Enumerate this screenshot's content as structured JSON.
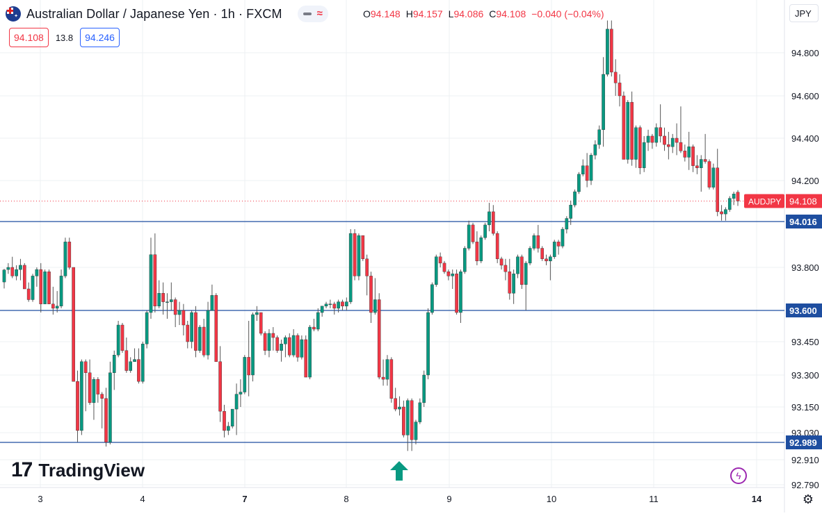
{
  "header": {
    "title": "Australian Dollar / Japanese Yen · 1h · FXCM",
    "flag_icon": "australia-flag-icon"
  },
  "ohlc": {
    "o_label": "O",
    "o": "94.148",
    "h_label": "H",
    "h": "94.157",
    "l_label": "L",
    "l": "94.086",
    "c_label": "C",
    "c": "94.108",
    "change": "−0.040 (−0.04%)"
  },
  "trade": {
    "sell": "94.108",
    "spread": "13.8",
    "buy": "94.246"
  },
  "currency_button": "JPY",
  "logo_text": "TradingView",
  "colors": {
    "up": "#089981",
    "down": "#f23645",
    "level_line": "#1e4ea0",
    "price_label": "#f23645",
    "arrow": "#089981",
    "grid": "#eef0f3"
  },
  "icons": {
    "bolt": "lightning-icon",
    "settings": "gear-icon",
    "signal_arrow": "up-arrow-icon"
  },
  "chart_data": {
    "type": "candlestick",
    "symbol_label": "AUDJPY",
    "current_price": 94.108,
    "y_ticks": [
      94.8,
      94.6,
      94.4,
      94.2,
      93.8,
      93.45,
      93.3,
      93.15,
      93.03,
      92.91,
      92.79
    ],
    "y_tick_labels": [
      "94.800",
      "94.600",
      "94.400",
      "94.200",
      "93.800",
      "93.450",
      "93.300",
      "93.150",
      "93.030",
      "92.910",
      "92.790"
    ],
    "x_labels": [
      "3",
      "4",
      "7",
      "8",
      "9",
      "10",
      "11",
      "14"
    ],
    "x_bold": [
      "7",
      "14"
    ],
    "levels": [
      94.016,
      93.6,
      92.989
    ],
    "level_labels": [
      "94.016",
      "93.600",
      "92.989"
    ],
    "arrow_at_date": "8",
    "candles": [
      [
        93.732,
        93.793,
        93.702,
        93.788
      ],
      [
        93.79,
        93.82,
        93.77,
        93.8
      ],
      [
        93.8,
        93.85,
        93.75,
        93.76
      ],
      [
        93.76,
        93.81,
        93.74,
        93.79
      ],
      [
        93.79,
        93.84,
        93.74,
        93.81
      ],
      [
        93.81,
        93.82,
        93.7,
        93.7
      ],
      [
        93.7,
        93.73,
        93.64,
        93.65
      ],
      [
        93.65,
        93.77,
        93.64,
        93.76
      ],
      [
        93.76,
        93.8,
        93.71,
        93.79
      ],
      [
        93.79,
        93.82,
        93.59,
        93.63
      ],
      [
        93.63,
        93.79,
        93.63,
        93.78
      ],
      [
        93.78,
        93.79,
        93.63,
        93.63
      ],
      [
        93.63,
        93.71,
        93.58,
        93.61
      ],
      [
        93.61,
        93.69,
        93.59,
        93.62
      ],
      [
        93.62,
        93.79,
        93.61,
        93.76
      ],
      [
        93.76,
        93.94,
        93.75,
        93.92
      ],
      [
        93.92,
        93.94,
        93.79,
        93.8
      ],
      [
        93.8,
        93.8,
        93.27,
        93.27
      ],
      [
        93.27,
        93.32,
        92.99,
        93.04
      ],
      [
        93.04,
        93.37,
        93.02,
        93.36
      ],
      [
        93.36,
        93.37,
        93.13,
        93.31
      ],
      [
        93.31,
        93.37,
        93.16,
        93.17
      ],
      [
        93.17,
        93.29,
        93.09,
        93.28
      ],
      [
        93.28,
        93.29,
        93.17,
        93.21
      ],
      [
        93.21,
        93.22,
        93.05,
        93.19
      ],
      [
        93.19,
        93.24,
        92.97,
        92.99
      ],
      [
        92.99,
        93.36,
        92.98,
        93.31
      ],
      [
        93.31,
        93.41,
        93.23,
        93.39
      ],
      [
        93.39,
        93.55,
        93.38,
        93.53
      ],
      [
        93.53,
        93.54,
        93.4,
        93.41
      ],
      [
        93.41,
        93.47,
        93.31,
        93.32
      ],
      [
        93.32,
        93.38,
        93.31,
        93.36
      ],
      [
        93.36,
        93.42,
        93.36,
        93.37
      ],
      [
        93.37,
        93.42,
        93.26,
        93.27
      ],
      [
        93.27,
        93.45,
        93.26,
        93.44
      ],
      [
        93.44,
        93.6,
        93.42,
        93.59
      ],
      [
        93.59,
        93.94,
        93.56,
        93.86
      ],
      [
        93.86,
        93.96,
        93.59,
        93.62
      ],
      [
        93.62,
        93.74,
        93.61,
        93.68
      ],
      [
        93.68,
        93.73,
        93.58,
        93.64
      ],
      [
        93.64,
        93.68,
        93.56,
        93.64
      ],
      [
        93.64,
        93.73,
        93.6,
        93.65
      ],
      [
        93.65,
        93.66,
        93.52,
        93.58
      ],
      [
        93.58,
        93.64,
        93.53,
        93.6
      ],
      [
        93.6,
        93.63,
        93.48,
        93.53
      ],
      [
        93.53,
        93.55,
        93.42,
        93.45
      ],
      [
        93.45,
        93.6,
        93.42,
        93.59
      ],
      [
        93.59,
        93.62,
        93.38,
        93.41
      ],
      [
        93.41,
        93.53,
        93.4,
        93.52
      ],
      [
        93.52,
        93.56,
        93.38,
        93.39
      ],
      [
        93.39,
        93.64,
        93.37,
        93.6
      ],
      [
        93.6,
        93.72,
        93.6,
        93.67
      ],
      [
        93.67,
        93.68,
        93.36,
        93.36
      ],
      [
        93.36,
        93.43,
        93.08,
        93.13
      ],
      [
        93.13,
        93.16,
        93.01,
        93.04
      ],
      [
        93.04,
        93.08,
        93.02,
        93.06
      ],
      [
        93.06,
        93.14,
        93.05,
        93.14
      ],
      [
        93.14,
        93.26,
        93.02,
        93.21
      ],
      [
        93.21,
        93.28,
        93.15,
        93.22
      ],
      [
        93.22,
        93.39,
        93.21,
        93.38
      ],
      [
        93.38,
        93.55,
        93.2,
        93.3
      ],
      [
        93.3,
        93.59,
        93.27,
        93.58
      ],
      [
        93.58,
        93.62,
        93.55,
        93.59
      ],
      [
        93.59,
        93.59,
        93.48,
        93.49
      ],
      [
        93.49,
        93.5,
        93.39,
        93.41
      ],
      [
        93.41,
        93.51,
        93.38,
        93.49
      ],
      [
        93.49,
        93.52,
        93.41,
        93.47
      ],
      [
        93.47,
        93.48,
        93.4,
        93.41
      ],
      [
        93.41,
        93.46,
        93.36,
        93.44
      ],
      [
        93.44,
        93.48,
        93.38,
        93.47
      ],
      [
        93.47,
        93.49,
        93.38,
        93.39
      ],
      [
        93.39,
        93.51,
        93.38,
        93.48
      ],
      [
        93.48,
        93.49,
        93.36,
        93.38
      ],
      [
        93.38,
        93.48,
        93.37,
        93.46
      ],
      [
        93.46,
        93.48,
        93.29,
        93.29
      ],
      [
        93.29,
        93.53,
        93.28,
        93.52
      ],
      [
        93.52,
        93.56,
        93.5,
        93.51
      ],
      [
        93.51,
        93.61,
        93.5,
        93.59
      ],
      [
        93.59,
        93.62,
        93.57,
        93.62
      ],
      [
        93.62,
        93.64,
        93.61,
        93.63
      ],
      [
        93.63,
        93.65,
        93.61,
        93.63
      ],
      [
        93.63,
        93.64,
        93.58,
        93.61
      ],
      [
        93.61,
        93.65,
        93.59,
        93.64
      ],
      [
        93.64,
        93.65,
        93.6,
        93.62
      ],
      [
        93.62,
        93.66,
        93.6,
        93.64
      ],
      [
        93.64,
        93.98,
        93.63,
        93.96
      ],
      [
        93.96,
        93.98,
        93.74,
        93.76
      ],
      [
        93.76,
        93.96,
        93.74,
        93.95
      ],
      [
        93.95,
        93.95,
        93.83,
        93.84
      ],
      [
        93.84,
        93.86,
        93.67,
        93.76
      ],
      [
        93.76,
        93.78,
        93.54,
        93.59
      ],
      [
        93.59,
        93.75,
        93.58,
        93.65
      ],
      [
        93.65,
        93.68,
        93.28,
        93.29
      ],
      [
        93.29,
        93.37,
        93.25,
        93.28
      ],
      [
        93.28,
        93.39,
        93.25,
        93.37
      ],
      [
        93.37,
        93.38,
        93.17,
        93.19
      ],
      [
        93.19,
        93.24,
        93.13,
        93.14
      ],
      [
        93.14,
        93.2,
        93.11,
        93.15
      ],
      [
        93.15,
        93.18,
        93.01,
        93.02
      ],
      [
        93.02,
        93.19,
        92.95,
        93.18
      ],
      [
        93.18,
        93.19,
        92.95,
        93.0
      ],
      [
        93.0,
        93.09,
        92.98,
        93.08
      ],
      [
        93.08,
        93.19,
        93.07,
        93.17
      ],
      [
        93.17,
        93.32,
        93.15,
        93.3
      ],
      [
        93.3,
        93.61,
        93.28,
        93.59
      ],
      [
        93.59,
        93.73,
        93.58,
        93.72
      ],
      [
        93.72,
        93.86,
        93.71,
        93.85
      ],
      [
        93.85,
        93.87,
        93.8,
        93.82
      ],
      [
        93.82,
        93.83,
        93.77,
        93.78
      ],
      [
        93.78,
        93.79,
        93.74,
        93.76
      ],
      [
        93.76,
        93.79,
        93.7,
        93.77
      ],
      [
        93.77,
        93.79,
        93.58,
        93.59
      ],
      [
        93.59,
        93.79,
        93.54,
        93.78
      ],
      [
        93.78,
        93.9,
        93.77,
        93.89
      ],
      [
        93.89,
        94.02,
        93.88,
        94.0
      ],
      [
        94.0,
        94.01,
        93.91,
        93.92
      ],
      [
        93.92,
        93.97,
        93.81,
        93.83
      ],
      [
        93.83,
        93.95,
        93.82,
        93.94
      ],
      [
        93.94,
        94.01,
        93.93,
        94.0
      ],
      [
        94.0,
        94.1,
        93.97,
        94.06
      ],
      [
        94.06,
        94.09,
        93.95,
        93.96
      ],
      [
        93.96,
        93.97,
        93.82,
        93.84
      ],
      [
        93.84,
        93.85,
        93.79,
        93.81
      ],
      [
        93.81,
        93.84,
        93.74,
        93.78
      ],
      [
        93.78,
        93.84,
        93.65,
        93.68
      ],
      [
        93.68,
        93.79,
        93.63,
        93.77
      ],
      [
        93.77,
        93.86,
        93.75,
        93.85
      ],
      [
        93.85,
        93.86,
        93.7,
        93.72
      ],
      [
        93.72,
        93.83,
        93.6,
        93.82
      ],
      [
        93.82,
        93.9,
        93.81,
        93.89
      ],
      [
        93.89,
        93.96,
        93.88,
        93.95
      ],
      [
        93.95,
        94.0,
        93.87,
        93.89
      ],
      [
        93.89,
        93.9,
        93.83,
        93.84
      ],
      [
        93.84,
        93.86,
        93.81,
        93.83
      ],
      [
        93.83,
        93.86,
        93.74,
        93.85
      ],
      [
        93.85,
        93.93,
        93.84,
        93.92
      ],
      [
        93.92,
        93.93,
        93.86,
        93.9
      ],
      [
        93.9,
        93.99,
        93.89,
        93.98
      ],
      [
        93.98,
        94.04,
        93.96,
        94.03
      ],
      [
        94.03,
        94.11,
        94.0,
        94.09
      ],
      [
        94.09,
        94.16,
        94.08,
        94.15
      ],
      [
        94.15,
        94.24,
        94.14,
        94.23
      ],
      [
        94.23,
        94.3,
        94.22,
        94.27
      ],
      [
        94.27,
        94.33,
        94.17,
        94.2
      ],
      [
        94.2,
        94.33,
        94.18,
        94.32
      ],
      [
        94.32,
        94.39,
        94.3,
        94.37
      ],
      [
        94.37,
        94.46,
        94.35,
        94.44
      ],
      [
        94.44,
        94.78,
        94.36,
        94.7
      ],
      [
        94.7,
        94.95,
        94.69,
        94.91
      ],
      [
        94.91,
        94.95,
        94.69,
        94.71
      ],
      [
        94.71,
        94.77,
        94.6,
        94.66
      ],
      [
        94.66,
        94.7,
        94.55,
        94.6
      ],
      [
        94.6,
        94.62,
        94.3,
        94.3
      ],
      [
        94.3,
        94.58,
        94.28,
        94.57
      ],
      [
        94.57,
        94.62,
        94.27,
        94.3
      ],
      [
        94.3,
        94.46,
        94.26,
        94.45
      ],
      [
        94.45,
        94.46,
        94.23,
        94.26
      ],
      [
        94.26,
        94.41,
        94.24,
        94.38
      ],
      [
        94.38,
        94.44,
        94.34,
        94.41
      ],
      [
        94.41,
        94.42,
        94.35,
        94.38
      ],
      [
        94.38,
        94.47,
        94.36,
        94.45
      ],
      [
        94.45,
        94.56,
        94.38,
        94.41
      ],
      [
        94.41,
        94.45,
        94.34,
        94.37
      ],
      [
        94.37,
        94.43,
        94.3,
        94.36
      ],
      [
        94.36,
        94.42,
        94.33,
        94.4
      ],
      [
        94.4,
        94.47,
        94.32,
        94.38
      ],
      [
        94.38,
        94.55,
        94.33,
        94.34
      ],
      [
        94.34,
        94.37,
        94.29,
        94.31
      ],
      [
        94.31,
        94.43,
        94.25,
        94.36
      ],
      [
        94.36,
        94.37,
        94.24,
        94.27
      ],
      [
        94.27,
        94.32,
        94.23,
        94.26
      ],
      [
        94.26,
        94.32,
        94.15,
        94.3
      ],
      [
        94.3,
        94.42,
        94.28,
        94.29
      ],
      [
        94.29,
        94.3,
        94.16,
        94.17
      ],
      [
        94.17,
        94.28,
        94.16,
        94.26
      ],
      [
        94.26,
        94.35,
        94.04,
        94.06
      ],
      [
        94.06,
        94.09,
        94.02,
        94.05
      ],
      [
        94.05,
        94.08,
        94.02,
        94.07
      ],
      [
        94.07,
        94.13,
        94.06,
        94.12
      ],
      [
        94.12,
        94.15,
        94.09,
        94.14
      ],
      [
        94.148,
        94.157,
        94.086,
        94.108
      ]
    ]
  }
}
